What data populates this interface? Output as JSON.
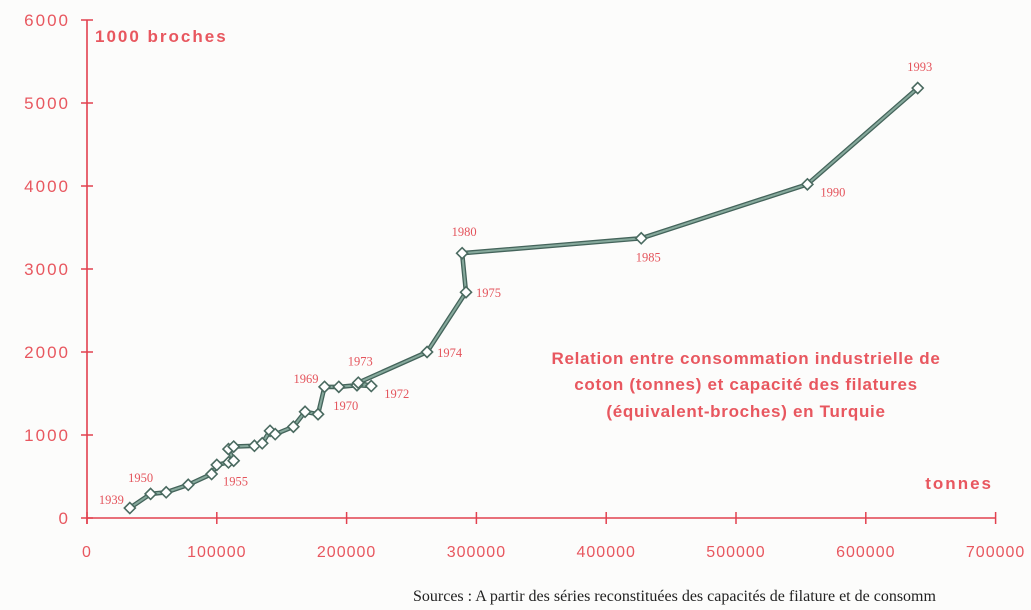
{
  "chart_data": {
    "type": "line",
    "title": [
      "Relation entre consommation industrielle de",
      "coton (tonnes) et capacité des filatures",
      "(équivalent-broches) en Turquie"
    ],
    "xlabel": "tonnes",
    "ylabel": "1000 broches",
    "xlim": [
      0,
      700000
    ],
    "ylim": [
      0,
      6000
    ],
    "x_ticks": [
      "0",
      "100000",
      "200000",
      "300000",
      "400000",
      "500000",
      "600000",
      "700000"
    ],
    "y_ticks": [
      "0",
      "1000",
      "2000",
      "3000",
      "4000",
      "5000",
      "6000"
    ],
    "grid": false,
    "markers": "diamond",
    "series": [
      {
        "points": [
          {
            "x": 33000,
            "y": 120,
            "label": "1939",
            "label_pos": "left"
          },
          {
            "x": 49000,
            "y": 290,
            "label": "1950",
            "label_pos": "above-left"
          },
          {
            "x": 61000,
            "y": 310
          },
          {
            "x": 78000,
            "y": 400
          },
          {
            "x": 96000,
            "y": 530
          },
          {
            "x": 100000,
            "y": 640
          },
          {
            "x": 109000,
            "y": 670,
            "label": "1955",
            "label_pos": "below"
          },
          {
            "x": 113000,
            "y": 690
          },
          {
            "x": 109000,
            "y": 830
          },
          {
            "x": 113000,
            "y": 860
          },
          {
            "x": 129000,
            "y": 870
          },
          {
            "x": 135000,
            "y": 900
          },
          {
            "x": 141000,
            "y": 1050
          },
          {
            "x": 145000,
            "y": 1010
          },
          {
            "x": 159000,
            "y": 1100
          },
          {
            "x": 168000,
            "y": 1280
          },
          {
            "x": 178000,
            "y": 1250
          },
          {
            "x": 183000,
            "y": 1580,
            "label": "1969",
            "label_pos": "left"
          },
          {
            "x": 194000,
            "y": 1580,
            "label": "1970",
            "label_pos": "below"
          },
          {
            "x": 208000,
            "y": 1600
          },
          {
            "x": 219000,
            "y": 1590,
            "label": "1972",
            "label_pos": "below-right"
          },
          {
            "x": 209000,
            "y": 1630,
            "label": "1973",
            "label_pos": "above"
          },
          {
            "x": 262000,
            "y": 2000,
            "label": "1974",
            "label_pos": "right"
          },
          {
            "x": 292000,
            "y": 2720,
            "label": "1975",
            "label_pos": "right"
          },
          {
            "x": 289000,
            "y": 3190,
            "label": "1980",
            "label_pos": "above"
          },
          {
            "x": 427000,
            "y": 3370,
            "label": "1985",
            "label_pos": "below"
          },
          {
            "x": 555000,
            "y": 4020,
            "label": "1990",
            "label_pos": "below-right"
          },
          {
            "x": 640000,
            "y": 5180,
            "label": "1993",
            "label_pos": "above"
          }
        ]
      }
    ]
  },
  "source": {
    "text": "Sources : A partir des séries reconstituées des capacités de filature et de consomm"
  },
  "colors": {
    "axis": "#e2414f",
    "text": "#e8575f",
    "year_label": "#e4545c",
    "line": "#86a99c",
    "line_outline": "#44645b",
    "marker_fill": "#ffffff",
    "marker_stroke": "#4a6a60",
    "source_text": "#222222"
  }
}
